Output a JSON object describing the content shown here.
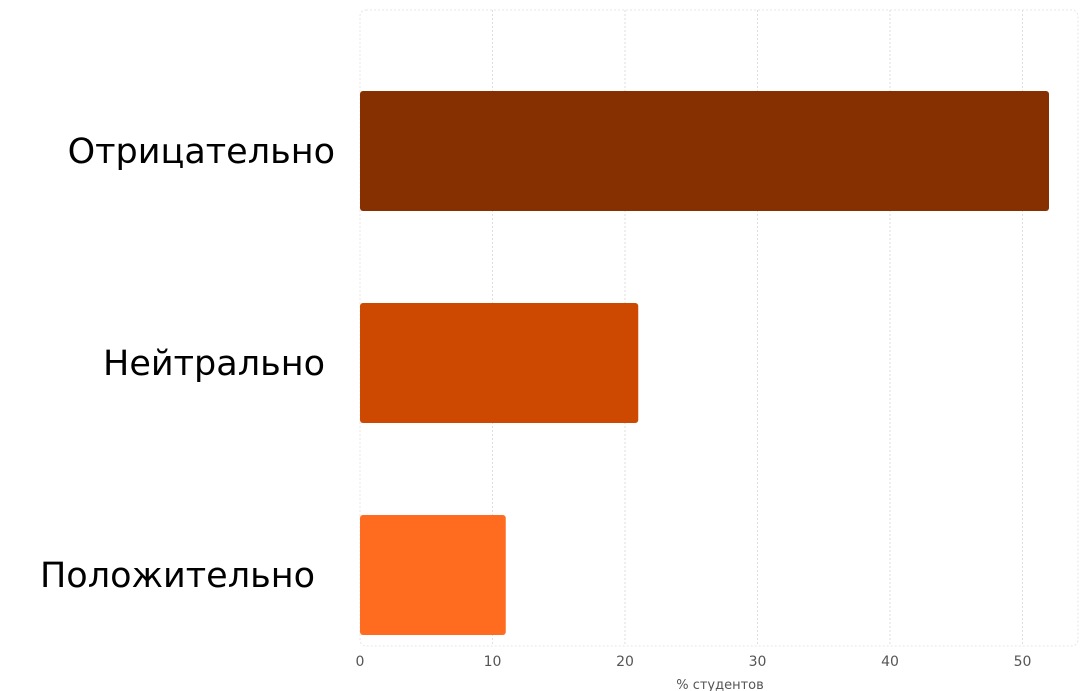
{
  "chart_data": {
    "type": "bar",
    "orientation": "horizontal",
    "categories": [
      "Отрицательно",
      "Нейтрально",
      "Положительно"
    ],
    "values": [
      52,
      21,
      11
    ],
    "colors": [
      "#862f00",
      "#cd4800",
      "#ff6b1f"
    ],
    "xlabel": "% студентов",
    "ylabel": "",
    "xlim": [
      0,
      54
    ],
    "xticks": [
      0,
      10,
      20,
      30,
      40,
      50
    ],
    "xtick_labels": [
      "0",
      "10",
      "20",
      "30",
      "40",
      "50"
    ],
    "grid": true
  }
}
